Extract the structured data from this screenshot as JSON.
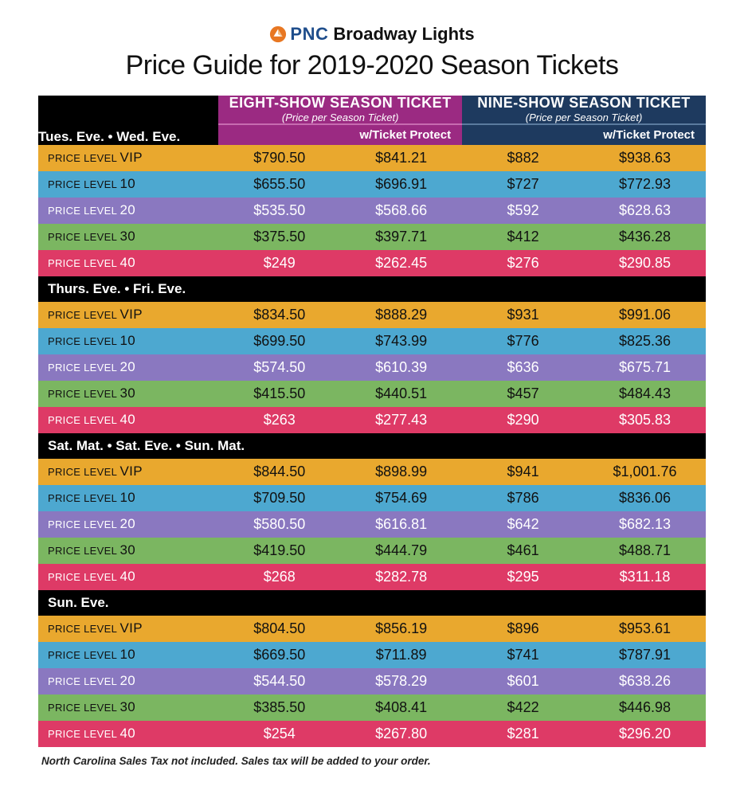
{
  "brand": {
    "logo_text": "PNC",
    "name": "Broadway Lights"
  },
  "title": "Price Guide for 2019-2020 Season Tickets",
  "colors": {
    "pkg_a_bg": "#9b2a82",
    "pkg_b_bg": "#1e3a5f",
    "section_bg": "#000000",
    "level_vip": "#e9a82e",
    "level_10": "#4da8d0",
    "level_20": "#8a78c0",
    "level_30": "#7bb661",
    "level_40": "#de3a66",
    "text_light": "#ffffff",
    "text_dark": "#111111",
    "pnc_orange": "#e87722",
    "pnc_blue": "#1f4e8c"
  },
  "packages": [
    {
      "title": "EIGHT-SHOW SEASON TICKET",
      "sub": "(Price per Season Ticket)",
      "col2": "w/Ticket Protect"
    },
    {
      "title": "NINE-SHOW SEASON TICKET",
      "sub": "(Price per Season Ticket)",
      "col2": "w/Ticket Protect"
    }
  ],
  "level_labels": {
    "prefix": "PRICE LEVEL",
    "vip": "VIP",
    "10": "10",
    "20": "20",
    "30": "30",
    "40": "40"
  },
  "level_row_colors": {
    "vip": "#e9a82e",
    "10": "#4da8d0",
    "20": "#8a78c0",
    "30": "#7bb661",
    "40": "#de3a66"
  },
  "level_text_colors": {
    "vip": "#111111",
    "10": "#111111",
    "20": "#ffffff",
    "30": "#111111",
    "40": "#ffffff"
  },
  "sections": [
    {
      "heading": "Tues. Eve. • Wed. Eve.",
      "rows": [
        {
          "level": "vip",
          "a1": "$790.50",
          "a2": "$841.21",
          "b1": "$882",
          "b2": "$938.63"
        },
        {
          "level": "10",
          "a1": "$655.50",
          "a2": "$696.91",
          "b1": "$727",
          "b2": "$772.93"
        },
        {
          "level": "20",
          "a1": "$535.50",
          "a2": "$568.66",
          "b1": "$592",
          "b2": "$628.63"
        },
        {
          "level": "30",
          "a1": "$375.50",
          "a2": "$397.71",
          "b1": "$412",
          "b2": "$436.28"
        },
        {
          "level": "40",
          "a1": "$249",
          "a2": "$262.45",
          "b1": "$276",
          "b2": "$290.85"
        }
      ]
    },
    {
      "heading": "Thurs. Eve. • Fri. Eve.",
      "rows": [
        {
          "level": "vip",
          "a1": "$834.50",
          "a2": "$888.29",
          "b1": "$931",
          "b2": "$991.06"
        },
        {
          "level": "10",
          "a1": "$699.50",
          "a2": "$743.99",
          "b1": "$776",
          "b2": "$825.36"
        },
        {
          "level": "20",
          "a1": "$574.50",
          "a2": "$610.39",
          "b1": "$636",
          "b2": "$675.71"
        },
        {
          "level": "30",
          "a1": "$415.50",
          "a2": "$440.51",
          "b1": "$457",
          "b2": "$484.43"
        },
        {
          "level": "40",
          "a1": "$263",
          "a2": "$277.43",
          "b1": "$290",
          "b2": "$305.83"
        }
      ]
    },
    {
      "heading": "Sat. Mat. • Sat. Eve. • Sun. Mat.",
      "rows": [
        {
          "level": "vip",
          "a1": "$844.50",
          "a2": "$898.99",
          "b1": "$941",
          "b2": "$1,001.76"
        },
        {
          "level": "10",
          "a1": "$709.50",
          "a2": "$754.69",
          "b1": "$786",
          "b2": "$836.06"
        },
        {
          "level": "20",
          "a1": "$580.50",
          "a2": "$616.81",
          "b1": "$642",
          "b2": "$682.13"
        },
        {
          "level": "30",
          "a1": "$419.50",
          "a2": "$444.79",
          "b1": "$461",
          "b2": "$488.71"
        },
        {
          "level": "40",
          "a1": "$268",
          "a2": "$282.78",
          "b1": "$295",
          "b2": "$311.18"
        }
      ]
    },
    {
      "heading": "Sun. Eve.",
      "rows": [
        {
          "level": "vip",
          "a1": "$804.50",
          "a2": "$856.19",
          "b1": "$896",
          "b2": "$953.61"
        },
        {
          "level": "10",
          "a1": "$669.50",
          "a2": "$711.89",
          "b1": "$741",
          "b2": "$787.91"
        },
        {
          "level": "20",
          "a1": "$544.50",
          "a2": "$578.29",
          "b1": "$601",
          "b2": "$638.26"
        },
        {
          "level": "30",
          "a1": "$385.50",
          "a2": "$408.41",
          "b1": "$422",
          "b2": "$446.98"
        },
        {
          "level": "40",
          "a1": "$254",
          "a2": "$267.80",
          "b1": "$281",
          "b2": "$296.20"
        }
      ]
    }
  ],
  "footnote": "North Carolina Sales Tax not included. Sales tax will be added to your order."
}
